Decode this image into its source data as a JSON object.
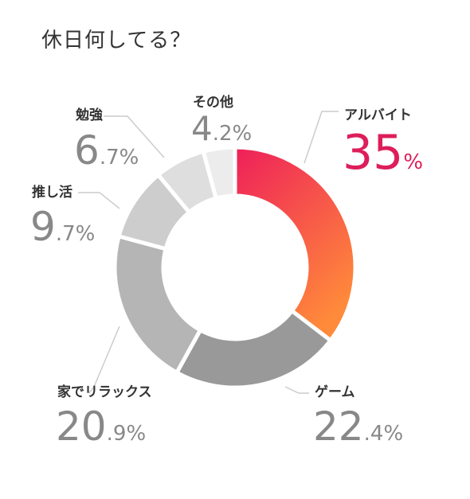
{
  "title": "休日何してる？",
  "colors": {
    "accent_start": "#ee1f5a",
    "accent_end": "#ff8a3a",
    "accent_text": "#dd1e5a",
    "leader": "#cccccc"
  },
  "chart_data": {
    "type": "pie",
    "title": "休日何してる？",
    "variant": "donut",
    "slices": [
      {
        "label": "アルバイト",
        "value": 35,
        "int": "35",
        "dec": "",
        "unit": "%",
        "color": "gradient",
        "accent": true
      },
      {
        "label": "ゲーム",
        "value": 22.4,
        "int": "22",
        "dec": ".4",
        "unit": "%",
        "color": "#999999",
        "accent": false
      },
      {
        "label": "家でリラックス",
        "value": 20.9,
        "int": "20",
        "dec": ".9",
        "unit": "%",
        "color": "#b5b5b5",
        "accent": false
      },
      {
        "label": "推し活",
        "value": 9.7,
        "int": "9",
        "dec": ".7",
        "unit": "%",
        "color": "#cdcdcd",
        "accent": false
      },
      {
        "label": "勉強",
        "value": 6.7,
        "int": "6",
        "dec": ".7",
        "unit": "%",
        "color": "#dedede",
        "accent": false
      },
      {
        "label": "その他",
        "value": 4.2,
        "int": "4",
        "dec": ".2",
        "unit": "%",
        "color": "#ececec",
        "accent": false
      }
    ]
  }
}
